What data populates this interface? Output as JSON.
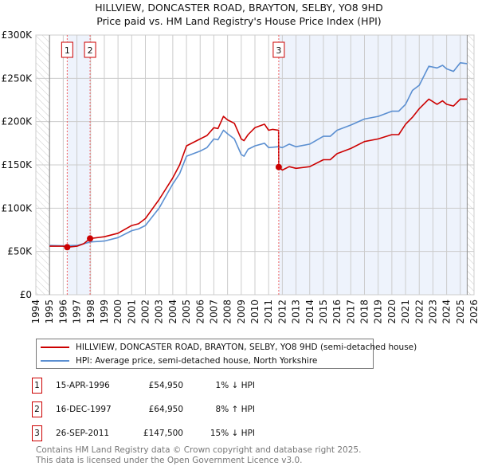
{
  "title_line1": "HILLVIEW, DONCASTER ROAD, BRAYTON, SELBY, YO8 9HD",
  "title_line2": "Price paid vs. HM Land Registry's House Price Index (HPI)",
  "legend": [
    {
      "label": "HILLVIEW, DONCASTER ROAD, BRAYTON, SELBY, YO8 9HD (semi-detached house)",
      "color": "#cc0000"
    },
    {
      "label": "HPI: Average price, semi-detached house, North Yorkshire",
      "color": "#5b8fd1"
    }
  ],
  "transactions": [
    {
      "num": "1",
      "date": "15-APR-1996",
      "price": "£54,950",
      "hpi": "1% ↓ HPI"
    },
    {
      "num": "2",
      "date": "16-DEC-1997",
      "price": "£64,950",
      "hpi": "8% ↑ HPI"
    },
    {
      "num": "3",
      "date": "26-SEP-2011",
      "price": "£147,500",
      "hpi": "15% ↓ HPI"
    }
  ],
  "footer_line1": "Contains HM Land Registry data © Crown copyright and database right 2025.",
  "footer_line2": "This data is licensed under the Open Government Licence v3.0.",
  "chart_data": {
    "type": "line",
    "title": "HILLVIEW, DONCASTER ROAD, BRAYTON, SELBY, YO8 9HD — Price paid vs. HM Land Registry's House Price Index (HPI)",
    "xlim": [
      1994,
      2026
    ],
    "ylim": [
      0,
      300000
    ],
    "x_ticks": [
      "1994",
      "1995",
      "1996",
      "1997",
      "1998",
      "1999",
      "2000",
      "2001",
      "2002",
      "2003",
      "2004",
      "2005",
      "2006",
      "2007",
      "2008",
      "2009",
      "2010",
      "2011",
      "2012",
      "2013",
      "2014",
      "2015",
      "2016",
      "2017",
      "2018",
      "2019",
      "2020",
      "2021",
      "2022",
      "2023",
      "2024",
      "2025",
      "2026"
    ],
    "y_ticks": [
      {
        "v": 0,
        "label": "£0"
      },
      {
        "v": 50000,
        "label": "£50K"
      },
      {
        "v": 100000,
        "label": "£100K"
      },
      {
        "v": 150000,
        "label": "£150K"
      },
      {
        "v": 200000,
        "label": "£200K"
      },
      {
        "v": 250000,
        "label": "£250K"
      },
      {
        "v": 300000,
        "label": "£300K"
      }
    ],
    "grid": true,
    "data_range": [
      1995,
      2025.5
    ],
    "shaded_periods": [
      [
        1996.29,
        1997.96
      ],
      [
        2011.74,
        2025.5
      ]
    ],
    "sales": [
      {
        "label": "1",
        "x": 1996.29,
        "y": 54950
      },
      {
        "label": "2",
        "x": 1997.96,
        "y": 64950
      },
      {
        "label": "3",
        "x": 2011.74,
        "y": 147500
      }
    ],
    "series": [
      {
        "name": "HILLVIEW, DONCASTER ROAD, BRAYTON, SELBY, YO8 9HD (semi-detached house)",
        "color": "#cc0000",
        "x": [
          1995,
          1996,
          1996.29,
          1997,
          1997.5,
          1997.96,
          1999,
          2000,
          2001,
          2001.5,
          2002,
          2003,
          2004,
          2004.5,
          2005,
          2006,
          2006.5,
          2007,
          2007.3,
          2007.7,
          2008,
          2008.5,
          2009,
          2009.2,
          2009.5,
          2010,
          2010.7,
          2011,
          2011.3,
          2011.73,
          2011.74,
          2012,
          2012.5,
          2013,
          2014,
          2015,
          2015.5,
          2016,
          2017,
          2018,
          2019,
          2020,
          2020.5,
          2021,
          2021.5,
          2022,
          2022.7,
          2023.3,
          2023.7,
          2024,
          2024.5,
          2025,
          2025.5
        ],
        "y": [
          56000,
          56000,
          54950,
          56000,
          59000,
          64950,
          67000,
          71000,
          80000,
          82000,
          88000,
          110000,
          135000,
          150000,
          172000,
          180000,
          184000,
          193000,
          192000,
          206000,
          202000,
          198000,
          180000,
          178000,
          185000,
          193000,
          197000,
          190000,
          191000,
          190000,
          147500,
          144000,
          148000,
          146000,
          148000,
          156000,
          156000,
          163000,
          169000,
          177000,
          180000,
          185000,
          185000,
          197000,
          205000,
          215000,
          226000,
          220000,
          224000,
          220000,
          218000,
          226000,
          226000
        ]
      },
      {
        "name": "HPI: Average price, semi-detached house, North Yorkshire",
        "color": "#5b8fd1",
        "x": [
          1995,
          1996,
          1997,
          1998,
          1999,
          2000,
          2001,
          2001.5,
          2002,
          2003,
          2004,
          2004.5,
          2005,
          2006,
          2006.5,
          2007,
          2007.3,
          2007.7,
          2008,
          2008.5,
          2009,
          2009.2,
          2009.5,
          2010,
          2010.7,
          2011,
          2011.7,
          2012,
          2012.5,
          2013,
          2014,
          2015,
          2015.5,
          2016,
          2017,
          2018,
          2019,
          2020,
          2020.5,
          2021,
          2021.5,
          2022,
          2022.7,
          2023.3,
          2023.7,
          2024,
          2024.5,
          2025,
          2025.5
        ],
        "y": [
          57000,
          56500,
          57000,
          61000,
          62000,
          66000,
          74000,
          76000,
          80000,
          100000,
          128000,
          140000,
          160000,
          166000,
          170000,
          180000,
          179000,
          190000,
          186000,
          180000,
          162000,
          160000,
          168000,
          172000,
          175000,
          170000,
          171000,
          170000,
          174000,
          171000,
          174000,
          183000,
          183000,
          190000,
          196000,
          203000,
          206000,
          212000,
          212000,
          220000,
          236000,
          242000,
          264000,
          262000,
          265000,
          261000,
          258000,
          268000,
          267000
        ]
      }
    ]
  }
}
